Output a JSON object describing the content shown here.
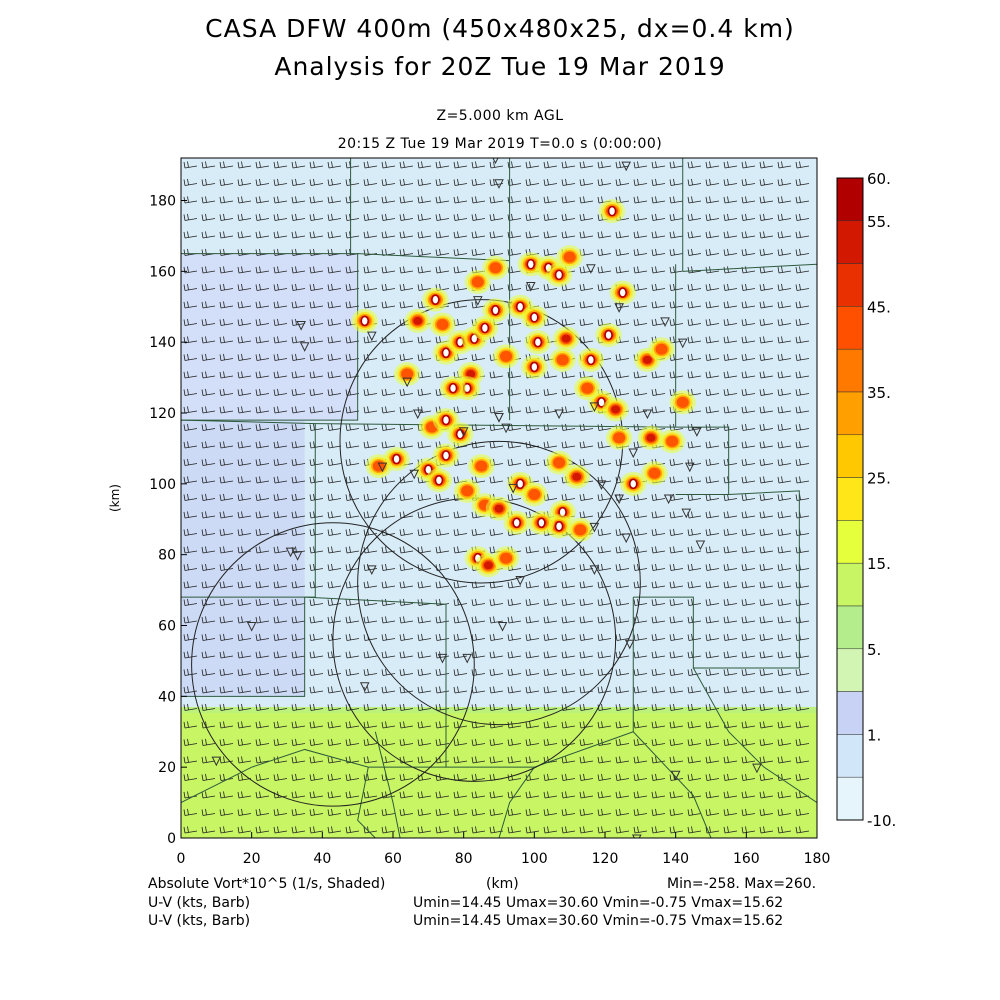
{
  "header": {
    "title_line1": "CASA DFW 400m (450x480x25, dx=0.4 km)",
    "title_line2": "Analysis for 20Z Tue 19 Mar 2019",
    "level": "Z=5.000 km AGL",
    "time": "20:15 Z Tue 19 Mar 2019    T=0.0 s (0:00:00)"
  },
  "footer": {
    "field1": "Absolute Vort*10^5 (1/s, Shaded)",
    "xunit": "(km)",
    "minmax": "Min=-258. Max=260.",
    "field2": "U-V (kts, Barb)",
    "field3": "U-V (kts, Barb)",
    "uv_stats_1": "Umin=14.45 Umax=30.60 Vmin=-0.75 Vmax=15.62",
    "uv_stats_2": "Umin=14.45 Umax=30.60 Vmin=-0.75 Vmax=15.62"
  },
  "chart_data": {
    "type": "heatmap",
    "xlabel": "(km)",
    "ylabel": "(km)",
    "xlim": [
      0,
      180
    ],
    "ylim": [
      0,
      192
    ],
    "x_ticks": [
      "0",
      "20",
      "40",
      "60",
      "80",
      "100",
      "120",
      "140",
      "160",
      "180"
    ],
    "y_ticks": [
      "0",
      "20",
      "40",
      "60",
      "80",
      "100",
      "120",
      "140",
      "160",
      "180"
    ],
    "colorbar": {
      "labels": [
        "60.",
        "55.",
        "45.",
        "35.",
        "25.",
        "15.",
        "5.",
        "1.",
        "-10."
      ],
      "colors": [
        "#b00000",
        "#d21800",
        "#e83000",
        "#ff5000",
        "#ff7800",
        "#ffa000",
        "#ffc800",
        "#ffe618",
        "#e6ff3c",
        "#c8f564",
        "#b4ee8c",
        "#d2f5b4",
        "#c8d2f5",
        "#d2e6fa",
        "#e6f5fc"
      ]
    },
    "background_regions": [
      {
        "region": "south (y 0-37 km)",
        "value_class": "5 to 15",
        "color": "#c8f564"
      },
      {
        "region": "west (x 0-35 km)",
        "value_class": "1 to 5",
        "color": "#c8d2f5"
      },
      {
        "region": "central/east",
        "value_class": "-10 to 1",
        "color": "#d8ecf8"
      }
    ],
    "vorticity_cells": [
      {
        "x": 52,
        "y": 146,
        "value": 60
      },
      {
        "x": 64,
        "y": 131,
        "value": 35
      },
      {
        "x": 67,
        "y": 146,
        "value": 50
      },
      {
        "x": 72,
        "y": 152,
        "value": 60
      },
      {
        "x": 74,
        "y": 145,
        "value": 45
      },
      {
        "x": 75,
        "y": 137,
        "value": 60
      },
      {
        "x": 79,
        "y": 140,
        "value": 60
      },
      {
        "x": 82,
        "y": 131,
        "value": 50
      },
      {
        "x": 81,
        "y": 127,
        "value": 60
      },
      {
        "x": 77,
        "y": 127,
        "value": 55
      },
      {
        "x": 83,
        "y": 141,
        "value": 55
      },
      {
        "x": 86,
        "y": 144,
        "value": 60
      },
      {
        "x": 89,
        "y": 149,
        "value": 60
      },
      {
        "x": 84,
        "y": 157,
        "value": 45
      },
      {
        "x": 89,
        "y": 161,
        "value": 35
      },
      {
        "x": 99,
        "y": 162,
        "value": 55
      },
      {
        "x": 104,
        "y": 161,
        "value": 60
      },
      {
        "x": 107,
        "y": 159,
        "value": 60
      },
      {
        "x": 110,
        "y": 164,
        "value": 45
      },
      {
        "x": 96,
        "y": 150,
        "value": 55
      },
      {
        "x": 100,
        "y": 147,
        "value": 60
      },
      {
        "x": 101,
        "y": 140,
        "value": 60
      },
      {
        "x": 100,
        "y": 133,
        "value": 55
      },
      {
        "x": 92,
        "y": 136,
        "value": 45
      },
      {
        "x": 109,
        "y": 141,
        "value": 50
      },
      {
        "x": 108,
        "y": 135,
        "value": 45
      },
      {
        "x": 116,
        "y": 135,
        "value": 55
      },
      {
        "x": 121,
        "y": 142,
        "value": 55
      },
      {
        "x": 125,
        "y": 154,
        "value": 60
      },
      {
        "x": 122,
        "y": 177,
        "value": 60
      },
      {
        "x": 132,
        "y": 135,
        "value": 50
      },
      {
        "x": 136,
        "y": 138,
        "value": 45
      },
      {
        "x": 142,
        "y": 123,
        "value": 40
      },
      {
        "x": 119,
        "y": 123,
        "value": 60
      },
      {
        "x": 123,
        "y": 121,
        "value": 50
      },
      {
        "x": 115,
        "y": 127,
        "value": 35
      },
      {
        "x": 71,
        "y": 116,
        "value": 45
      },
      {
        "x": 75,
        "y": 118,
        "value": 55
      },
      {
        "x": 79,
        "y": 114,
        "value": 60
      },
      {
        "x": 75,
        "y": 108,
        "value": 55
      },
      {
        "x": 70,
        "y": 104,
        "value": 60
      },
      {
        "x": 73,
        "y": 101,
        "value": 60
      },
      {
        "x": 61,
        "y": 107,
        "value": 60
      },
      {
        "x": 56,
        "y": 105,
        "value": 35
      },
      {
        "x": 81,
        "y": 98,
        "value": 45
      },
      {
        "x": 86,
        "y": 94,
        "value": 45
      },
      {
        "x": 96,
        "y": 100,
        "value": 55
      },
      {
        "x": 100,
        "y": 97,
        "value": 45
      },
      {
        "x": 107,
        "y": 106,
        "value": 35
      },
      {
        "x": 112,
        "y": 102,
        "value": 50
      },
      {
        "x": 128,
        "y": 100,
        "value": 60
      },
      {
        "x": 134,
        "y": 103,
        "value": 45
      },
      {
        "x": 133,
        "y": 113,
        "value": 50
      },
      {
        "x": 139,
        "y": 112,
        "value": 45
      },
      {
        "x": 124,
        "y": 113,
        "value": 40
      },
      {
        "x": 108,
        "y": 92,
        "value": 60
      },
      {
        "x": 107,
        "y": 88,
        "value": 60
      },
      {
        "x": 102,
        "y": 89,
        "value": 55
      },
      {
        "x": 95,
        "y": 89,
        "value": 60
      },
      {
        "x": 90,
        "y": 93,
        "value": 50
      },
      {
        "x": 84,
        "y": 79,
        "value": 60
      },
      {
        "x": 87,
        "y": 77,
        "value": 50
      },
      {
        "x": 92,
        "y": 79,
        "value": 40
      },
      {
        "x": 85,
        "y": 105,
        "value": 45
      },
      {
        "x": 113,
        "y": 87,
        "value": 40
      }
    ],
    "radar_rings": [
      {
        "center": [
          83,
          56
        ],
        "radius": 40
      },
      {
        "center": [
          85,
          112
        ],
        "radius": 40
      },
      {
        "center": [
          90,
          72
        ],
        "radius": 40
      },
      {
        "center": [
          43,
          49
        ],
        "radius": 40
      }
    ],
    "wind": {
      "u_min": 14.45,
      "u_max": 30.6,
      "v_min": -0.75,
      "v_max": 15.62,
      "dominant": "westerly to west-southwesterly barbs, ~20-30 kts"
    }
  }
}
